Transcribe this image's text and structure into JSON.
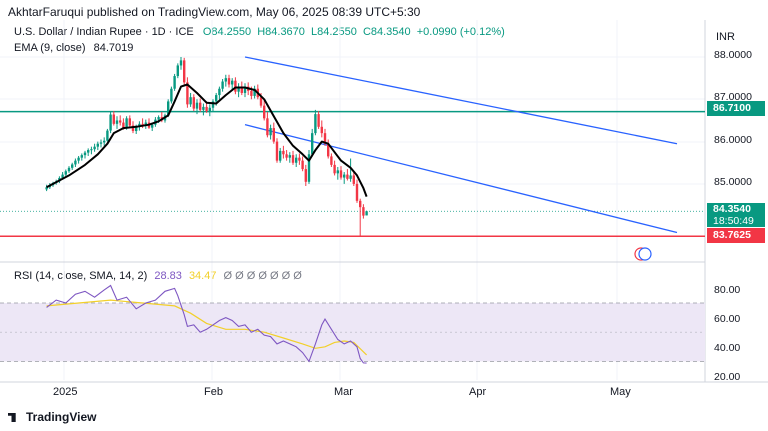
{
  "header": {
    "published": "AkhtarFaruqui published on TradingView.com, May 06, 2025 08:39 UTC+5:30"
  },
  "legend": {
    "title": "U.S. Dollar / Indian Rupee · 1D · ICE",
    "open": "O84.2550",
    "high": "H84.3670",
    "low": "L84.2550",
    "close": "C84.3540",
    "change": "+0.0990 (+0.12%)",
    "ema_title": "EMA (9, close)",
    "ema_value": "84.7019",
    "rsi_title": "RSI (14, close, SMA, 14, 2)",
    "rsi_value": "28.83",
    "rsi_ma_value": "34.47",
    "rsi_extra": "Ø Ø Ø Ø Ø Ø Ø"
  },
  "currency": "INR",
  "colors": {
    "up": "#089981",
    "down": "#f23645",
    "ema": "#000000",
    "channel": "#2962ff",
    "resistance": "#089981",
    "support": "#f23645",
    "rsi": "#7e57c2",
    "rsi_ma": "#f2d02a",
    "rsi_band": "#ede7f6"
  },
  "price_axis": {
    "ticks": [
      "88.0000",
      "87.0000",
      "86.0000",
      "85.0000"
    ],
    "last_price": "84.3540",
    "countdown": "18:50:49",
    "resistance_label": "86.7100",
    "support_label": "83.7625"
  },
  "rsi_axis": {
    "ticks": [
      "80.00",
      "60.00",
      "40.00",
      "20.00"
    ]
  },
  "x_axis": {
    "labels": [
      "2025",
      "Feb",
      "Mar",
      "Apr",
      "May"
    ]
  },
  "footer": {
    "brand": "TradingView"
  },
  "chart_data": {
    "type": "candlestick",
    "symbol": "USDINR",
    "timeframe": "1D",
    "y_range": [
      83.6,
      88.2
    ],
    "resistance": 86.71,
    "support": 83.7625,
    "channel": {
      "upper": [
        [
          0,
          88.0
        ],
        [
          135,
          85.95
        ]
      ],
      "lower": [
        [
          0,
          86.4
        ],
        [
          135,
          83.85
        ]
      ]
    },
    "candles": [
      [
        -62,
        84.87,
        84.98,
        84.83,
        84.92
      ],
      [
        -61,
        84.92,
        85.02,
        84.88,
        84.97
      ],
      [
        -60,
        84.97,
        85.05,
        84.93,
        85.02
      ],
      [
        -59,
        85.02,
        85.1,
        84.98,
        85.06
      ],
      [
        -58,
        85.06,
        85.18,
        85.02,
        85.14
      ],
      [
        -57,
        85.14,
        85.28,
        85.1,
        85.22
      ],
      [
        -56,
        85.22,
        85.34,
        85.18,
        85.3
      ],
      [
        -55,
        85.3,
        85.42,
        85.26,
        85.38
      ],
      [
        -54,
        85.38,
        85.5,
        85.33,
        85.46
      ],
      [
        -53,
        85.46,
        85.6,
        85.4,
        85.55
      ],
      [
        -52,
        85.55,
        85.66,
        85.48,
        85.62
      ],
      [
        -51,
        85.62,
        85.72,
        85.55,
        85.68
      ],
      [
        -50,
        85.68,
        85.78,
        85.6,
        85.74
      ],
      [
        -49,
        85.74,
        85.84,
        85.66,
        85.8
      ],
      [
        -48,
        85.8,
        85.88,
        85.7,
        85.82
      ],
      [
        -47,
        85.82,
        85.95,
        85.76,
        85.88
      ],
      [
        -46,
        85.88,
        86.0,
        85.8,
        85.95
      ],
      [
        -45,
        85.95,
        86.05,
        85.86,
        85.98
      ],
      [
        -44,
        85.98,
        86.1,
        85.9,
        86.02
      ],
      [
        -43,
        86.02,
        86.3,
        86.0,
        86.26
      ],
      [
        -42,
        86.26,
        86.7,
        86.2,
        86.64
      ],
      [
        -41,
        86.64,
        86.72,
        86.38,
        86.42
      ],
      [
        -40,
        86.42,
        86.6,
        86.3,
        86.5
      ],
      [
        -39,
        86.5,
        86.62,
        86.38,
        86.45
      ],
      [
        -38,
        86.45,
        86.55,
        86.28,
        86.32
      ],
      [
        -37,
        86.32,
        86.6,
        86.28,
        86.55
      ],
      [
        -36,
        86.55,
        86.62,
        86.32,
        86.38
      ],
      [
        -35,
        86.38,
        86.48,
        86.2,
        86.25
      ],
      [
        -34,
        86.25,
        86.4,
        86.18,
        86.35
      ],
      [
        -33,
        86.35,
        86.48,
        86.26,
        86.42
      ],
      [
        -32,
        86.42,
        86.55,
        86.32,
        86.38
      ],
      [
        -31,
        86.38,
        86.52,
        86.3,
        86.45
      ],
      [
        -30,
        86.45,
        86.55,
        86.3,
        86.33
      ],
      [
        -29,
        86.33,
        86.45,
        86.25,
        86.4
      ],
      [
        -28,
        86.4,
        86.58,
        86.35,
        86.52
      ],
      [
        -27,
        86.52,
        86.62,
        86.44,
        86.58
      ],
      [
        -26,
        86.58,
        86.7,
        86.46,
        86.5
      ],
      [
        -25,
        86.5,
        86.66,
        86.45,
        86.62
      ],
      [
        -24,
        86.62,
        87.0,
        86.58,
        86.95
      ],
      [
        -23,
        86.95,
        87.3,
        86.9,
        87.25
      ],
      [
        -22,
        87.25,
        87.6,
        87.2,
        87.55
      ],
      [
        -21,
        87.55,
        87.85,
        87.5,
        87.8
      ],
      [
        -20,
        87.8,
        88.0,
        87.7,
        87.92
      ],
      [
        -19,
        87.92,
        87.98,
        87.35,
        87.4
      ],
      [
        -18,
        87.4,
        87.52,
        86.8,
        86.88
      ],
      [
        -17,
        86.88,
        87.15,
        86.82,
        87.05
      ],
      [
        -16,
        87.05,
        87.12,
        86.72,
        86.78
      ],
      [
        -15,
        86.78,
        87.0,
        86.65,
        86.92
      ],
      [
        -14,
        86.92,
        87.02,
        86.7,
        86.75
      ],
      [
        -13,
        86.75,
        86.9,
        86.62,
        86.82
      ],
      [
        -12,
        86.82,
        86.95,
        86.68,
        86.72
      ],
      [
        -11,
        86.72,
        86.88,
        86.6,
        86.8
      ],
      [
        -10,
        86.8,
        87.0,
        86.72,
        86.95
      ],
      [
        -9,
        86.95,
        87.15,
        86.85,
        87.1
      ],
      [
        -8,
        87.1,
        87.3,
        87.0,
        87.25
      ],
      [
        -7,
        87.25,
        87.48,
        87.18,
        87.42
      ],
      [
        -6,
        87.42,
        87.58,
        87.3,
        87.5
      ],
      [
        -5,
        87.5,
        87.58,
        87.28,
        87.35
      ],
      [
        -4,
        87.35,
        87.5,
        87.2,
        87.44
      ],
      [
        -3,
        87.44,
        87.52,
        87.12,
        87.18
      ],
      [
        -2,
        87.18,
        87.38,
        87.05,
        87.3
      ],
      [
        -1,
        87.3,
        87.42,
        87.1,
        87.15
      ],
      [
        0,
        87.15,
        87.38,
        87.05,
        87.3
      ],
      [
        1,
        87.3,
        87.4,
        87.1,
        87.2
      ],
      [
        2,
        87.2,
        87.3,
        87.0,
        87.08
      ],
      [
        3,
        87.08,
        87.32,
        87.02,
        87.25
      ],
      [
        4,
        87.25,
        87.35,
        87.0,
        87.05
      ],
      [
        5,
        87.05,
        87.15,
        86.8,
        86.85
      ],
      [
        6,
        86.85,
        87.0,
        86.5,
        86.55
      ],
      [
        7,
        86.55,
        86.7,
        86.1,
        86.15
      ],
      [
        8,
        86.15,
        86.4,
        86.05,
        86.32
      ],
      [
        9,
        86.32,
        86.45,
        85.95,
        86.0
      ],
      [
        10,
        86.0,
        86.08,
        85.5,
        85.55
      ],
      [
        11,
        85.55,
        85.85,
        85.5,
        85.78
      ],
      [
        12,
        85.78,
        85.9,
        85.6,
        85.7
      ],
      [
        13,
        85.7,
        85.8,
        85.55,
        85.62
      ],
      [
        14,
        85.62,
        85.75,
        85.5,
        85.68
      ],
      [
        15,
        85.68,
        85.78,
        85.45,
        85.5
      ],
      [
        16,
        85.5,
        85.7,
        85.4,
        85.62
      ],
      [
        17,
        85.62,
        85.72,
        85.45,
        85.55
      ],
      [
        18,
        85.55,
        85.65,
        85.3,
        85.35
      ],
      [
        19,
        85.35,
        85.45,
        84.95,
        85.05
      ],
      [
        20,
        85.05,
        85.8,
        85.0,
        85.7
      ],
      [
        21,
        85.7,
        86.3,
        85.65,
        86.2
      ],
      [
        22,
        86.2,
        86.75,
        86.15,
        86.65
      ],
      [
        23,
        86.65,
        86.72,
        86.3,
        86.35
      ],
      [
        24,
        86.35,
        86.5,
        86.1,
        86.2
      ],
      [
        25,
        86.2,
        86.3,
        85.9,
        85.95
      ],
      [
        26,
        85.95,
        86.05,
        85.6,
        85.65
      ],
      [
        27,
        85.65,
        85.72,
        85.4,
        85.45
      ],
      [
        28,
        85.45,
        85.55,
        85.2,
        85.25
      ],
      [
        29,
        85.25,
        85.4,
        85.1,
        85.32
      ],
      [
        30,
        85.32,
        85.42,
        85.1,
        85.15
      ],
      [
        31,
        85.15,
        85.28,
        85.0,
        85.22
      ],
      [
        32,
        85.22,
        85.35,
        85.08,
        85.12
      ],
      [
        33,
        85.12,
        85.6,
        85.05,
        85.2
      ],
      [
        34,
        85.2,
        85.3,
        84.95,
        85.0
      ],
      [
        35,
        85.0,
        85.1,
        84.55,
        84.6
      ],
      [
        36,
        84.6,
        84.65,
        83.76,
        84.45
      ],
      [
        37,
        84.45,
        84.52,
        84.18,
        84.25
      ],
      [
        38,
        84.255,
        84.367,
        84.255,
        84.354
      ]
    ],
    "ema_9": [
      [
        -62,
        84.92
      ],
      [
        -55,
        85.2
      ],
      [
        -50,
        85.45
      ],
      [
        -46,
        85.7
      ],
      [
        -43,
        85.95
      ],
      [
        -41,
        86.2
      ],
      [
        -38,
        86.32
      ],
      [
        -34,
        86.35
      ],
      [
        -30,
        86.4
      ],
      [
        -27,
        86.48
      ],
      [
        -24,
        86.62
      ],
      [
        -22,
        86.95
      ],
      [
        -20,
        87.3
      ],
      [
        -18,
        87.35
      ],
      [
        -15,
        87.15
      ],
      [
        -12,
        86.92
      ],
      [
        -9,
        86.9
      ],
      [
        -6,
        87.1
      ],
      [
        -3,
        87.28
      ],
      [
        0,
        87.28
      ],
      [
        3,
        87.22
      ],
      [
        6,
        87.0
      ],
      [
        9,
        86.6
      ],
      [
        12,
        86.2
      ],
      [
        15,
        85.9
      ],
      [
        18,
        85.7
      ],
      [
        20,
        85.55
      ],
      [
        22,
        85.8
      ],
      [
        24,
        86.0
      ],
      [
        26,
        85.95
      ],
      [
        28,
        85.75
      ],
      [
        30,
        85.55
      ],
      [
        33,
        85.38
      ],
      [
        35,
        85.2
      ],
      [
        37,
        84.9
      ],
      [
        38,
        84.7
      ]
    ],
    "rsi": [
      [
        -62,
        67
      ],
      [
        -59,
        72
      ],
      [
        -56,
        70
      ],
      [
        -53,
        76
      ],
      [
        -50,
        78
      ],
      [
        -47,
        74
      ],
      [
        -44,
        79
      ],
      [
        -42,
        82
      ],
      [
        -40,
        72
      ],
      [
        -37,
        74
      ],
      [
        -34,
        66
      ],
      [
        -31,
        70
      ],
      [
        -28,
        72
      ],
      [
        -25,
        78
      ],
      [
        -22,
        80
      ],
      [
        -21,
        75
      ],
      [
        -19,
        62
      ],
      [
        -18,
        54
      ],
      [
        -16,
        55
      ],
      [
        -14,
        50
      ],
      [
        -12,
        52
      ],
      [
        -10,
        55
      ],
      [
        -8,
        58
      ],
      [
        -6,
        60
      ],
      [
        -4,
        58
      ],
      [
        -2,
        54
      ],
      [
        0,
        55
      ],
      [
        2,
        50
      ],
      [
        4,
        52
      ],
      [
        6,
        48
      ],
      [
        8,
        47
      ],
      [
        10,
        42
      ],
      [
        12,
        44
      ],
      [
        14,
        42
      ],
      [
        16,
        40
      ],
      [
        18,
        36
      ],
      [
        20,
        30
      ],
      [
        22,
        42
      ],
      [
        24,
        55
      ],
      [
        25,
        59
      ],
      [
        27,
        52
      ],
      [
        29,
        45
      ],
      [
        31,
        42
      ],
      [
        33,
        44
      ],
      [
        35,
        40
      ],
      [
        36,
        32
      ],
      [
        37,
        29
      ],
      [
        38,
        28.83
      ]
    ],
    "rsi_ma": [
      [
        -62,
        68
      ],
      [
        -52,
        70
      ],
      [
        -42,
        72
      ],
      [
        -32,
        70
      ],
      [
        -22,
        68
      ],
      [
        -17,
        63
      ],
      [
        -12,
        56
      ],
      [
        -6,
        52
      ],
      [
        0,
        52
      ],
      [
        6,
        50
      ],
      [
        12,
        46
      ],
      [
        18,
        42
      ],
      [
        22,
        39
      ],
      [
        25,
        40
      ],
      [
        28,
        43
      ],
      [
        31,
        44
      ],
      [
        34,
        43
      ],
      [
        38,
        34.47
      ]
    ]
  }
}
